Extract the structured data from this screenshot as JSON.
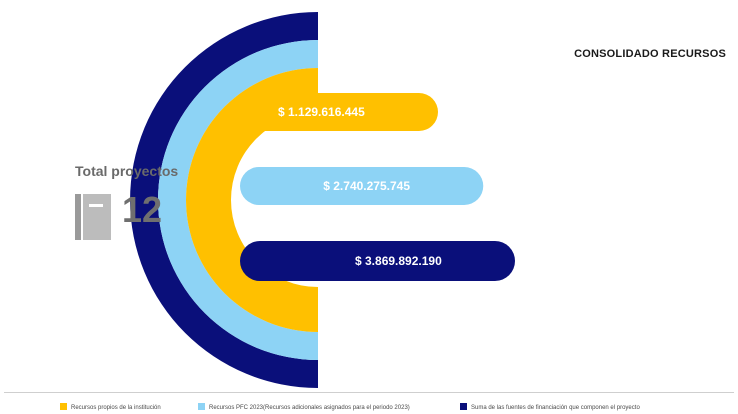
{
  "chart_data": {
    "type": "bar",
    "title": "CONSOLIDADO RECURSOS",
    "series": [
      {
        "name": "Recursos propios de la institución",
        "value": 1129616445,
        "label": "$ 1.129.616.445",
        "color": "#FFC000"
      },
      {
        "name": "Recursos PFC 2023(Recursos adicionales asignados para el periodo 2023)",
        "value": 2740275745,
        "label": "$ 2.740.275.745",
        "color": "#8DD3F5"
      },
      {
        "name": "Suma de las fuentes de financiación que componen el proyecto",
        "value": 3869892190,
        "label": "$ 3.869.892.190",
        "color": "#0A0F7A"
      }
    ]
  },
  "summary": {
    "label": "Total proyectos",
    "value": "12",
    "icon": "document-icon"
  }
}
